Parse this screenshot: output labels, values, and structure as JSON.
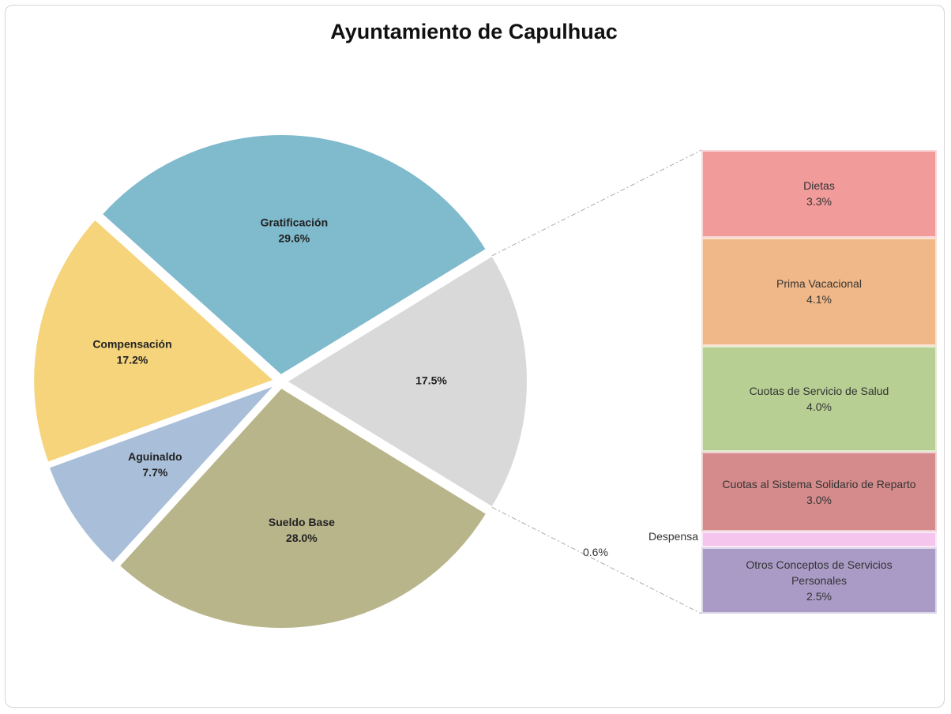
{
  "chart_data": {
    "type": "pie",
    "title": "Ayuntamiento de Capulhuac",
    "categories": [
      null,
      "Sueldo Base",
      "Aguinaldo",
      "Compensación",
      "Gratificación"
    ],
    "values": [
      17.5,
      28.0,
      7.7,
      17.2,
      29.6
    ],
    "value_labels": [
      "17.5%",
      "28.0%",
      "7.7%",
      "17.2%",
      "29.6%"
    ],
    "colors": [
      "#d9d9d9",
      "#b9b58b",
      "#a9bfd9",
      "#f5d47c",
      "#7fbacd"
    ],
    "breakdown": {
      "categories": [
        "Dietas",
        "Prima Vacacional",
        "Cuotas de Servicio de Salud",
        "Cuotas al Sistema Solidario de Reparto",
        "Despensa",
        "Otros Conceptos de Servicios Personales"
      ],
      "values": [
        3.3,
        4.1,
        4.0,
        3.0,
        0.6,
        2.5
      ],
      "value_labels": [
        "3.3%",
        "4.1%",
        "4.0%",
        "3.0%",
        "0.6%",
        "2.5%"
      ],
      "colors": [
        "#f29b9b",
        "#f0b888",
        "#b8cf93",
        "#d58b8b",
        "#f5c5ee",
        "#a99bc6"
      ]
    }
  }
}
